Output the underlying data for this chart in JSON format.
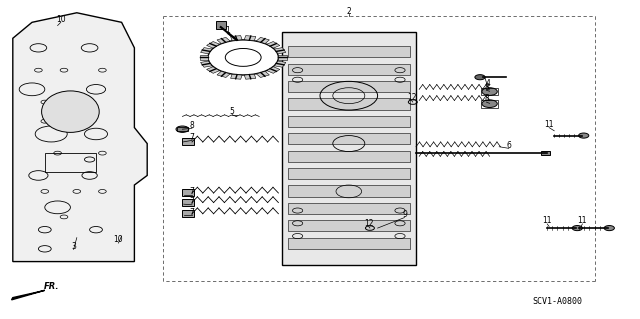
{
  "bg_color": "#ffffff",
  "line_color": "#000000",
  "fig_width": 6.4,
  "fig_height": 3.19,
  "footer_text": "SCV1-A0800",
  "fr_label": "FR."
}
